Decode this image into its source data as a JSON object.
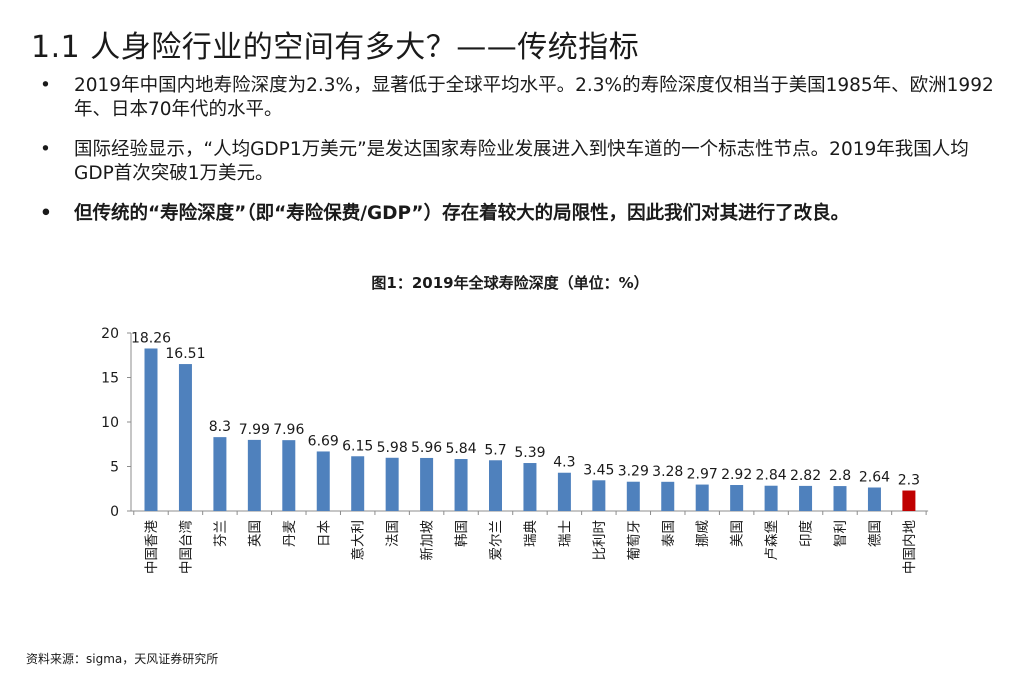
{
  "page": {
    "title": "1.1 人身险行业的空间有多大？——传统指标",
    "bullets": [
      {
        "dot": "•",
        "text": "2019年中国内地寿险深度为2.3%，显著低于全球平均水平。2.3%的寿险深度仅相当于美国1985年、欧洲1992年、日本70年代的水平。"
      },
      {
        "dot": "•",
        "text": "国际经验显示，“人均GDP1万美元”是发达国家寿险业发展进入到快车道的一个标志性节点。2019年我国人均GDP首次突破1万美元。"
      },
      {
        "dot": "•",
        "text": "但传统的“寿险深度”（即“寿险保费/GDP”）存在着较大的局限性，因此我们对其进行了改良。"
      }
    ],
    "source": "资料来源：sigma，天风证券研究所"
  },
  "chart_data": {
    "type": "bar",
    "title": "图1：2019年全球寿险深度（单位：%）",
    "categories": [
      "中国香港",
      "中国台湾",
      "芬兰",
      "英国",
      "丹麦",
      "日本",
      "意大利",
      "法国",
      "新加坡",
      "韩国",
      "爱尔兰",
      "瑞典",
      "瑞士",
      "比利时",
      "葡萄牙",
      "泰国",
      "挪威",
      "美国",
      "卢森堡",
      "印度",
      "智利",
      "德国",
      "中国内地"
    ],
    "values": [
      18.26,
      16.51,
      8.3,
      7.99,
      7.96,
      6.69,
      6.15,
      5.98,
      5.96,
      5.84,
      5.7,
      5.39,
      4.3,
      3.45,
      3.29,
      3.28,
      2.97,
      2.92,
      2.84,
      2.82,
      2.8,
      2.64,
      2.3
    ],
    "value_labels": [
      "18.26",
      "16.51",
      "8.3",
      "7.99",
      "7.96",
      "6.69",
      "6.15",
      "5.98",
      "5.96",
      "5.84",
      "5.7",
      "5.39",
      "4.3",
      "3.45",
      "3.29",
      "3.28",
      "2.97",
      "2.92",
      "2.84",
      "2.82",
      "2.8",
      "2.64",
      "2.3"
    ],
    "yticks": [
      "0",
      "5",
      "10",
      "15",
      "20"
    ],
    "ylim": [
      0,
      20
    ],
    "highlight_category": "中国内地",
    "bar_color": "#4f81bd",
    "highlight_color": "#c00000",
    "grid": false,
    "xlabel": "",
    "ylabel": ""
  }
}
